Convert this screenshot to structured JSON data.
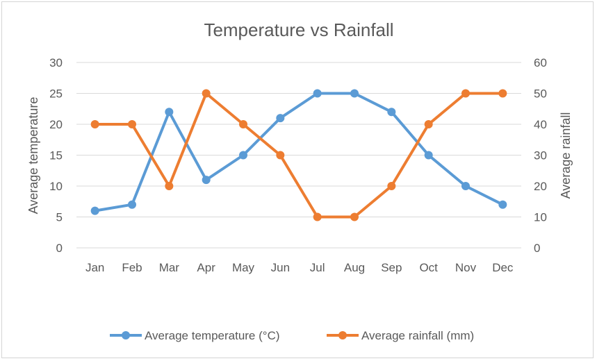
{
  "chart_data": {
    "type": "line",
    "title": "Temperature vs Rainfall",
    "categories": [
      "Jan",
      "Feb",
      "Mar",
      "Apr",
      "May",
      "Jun",
      "Jul",
      "Aug",
      "Sep",
      "Oct",
      "Nov",
      "Dec"
    ],
    "series": [
      {
        "name": "Average temperature (°C)",
        "axis": "left",
        "color": "#5b9bd5",
        "values": [
          6,
          7,
          22,
          11,
          15,
          21,
          25,
          25,
          22,
          15,
          10,
          7
        ]
      },
      {
        "name": "Average rainfall (mm)",
        "axis": "right",
        "color": "#ed7d31",
        "values": [
          40,
          40,
          20,
          50,
          40,
          30,
          10,
          10,
          20,
          40,
          50,
          50
        ]
      }
    ],
    "y_left": {
      "label": "Average temperature",
      "range": [
        0,
        30
      ],
      "ticks": [
        "0",
        "5",
        "10",
        "15",
        "20",
        "25",
        "30"
      ]
    },
    "y_right": {
      "label": "Average rainfall",
      "range": [
        0,
        60
      ],
      "ticks": [
        "0",
        "10",
        "20",
        "30",
        "40",
        "50",
        "60"
      ]
    },
    "xlabel": "",
    "grid": true,
    "legend": "bottom"
  }
}
